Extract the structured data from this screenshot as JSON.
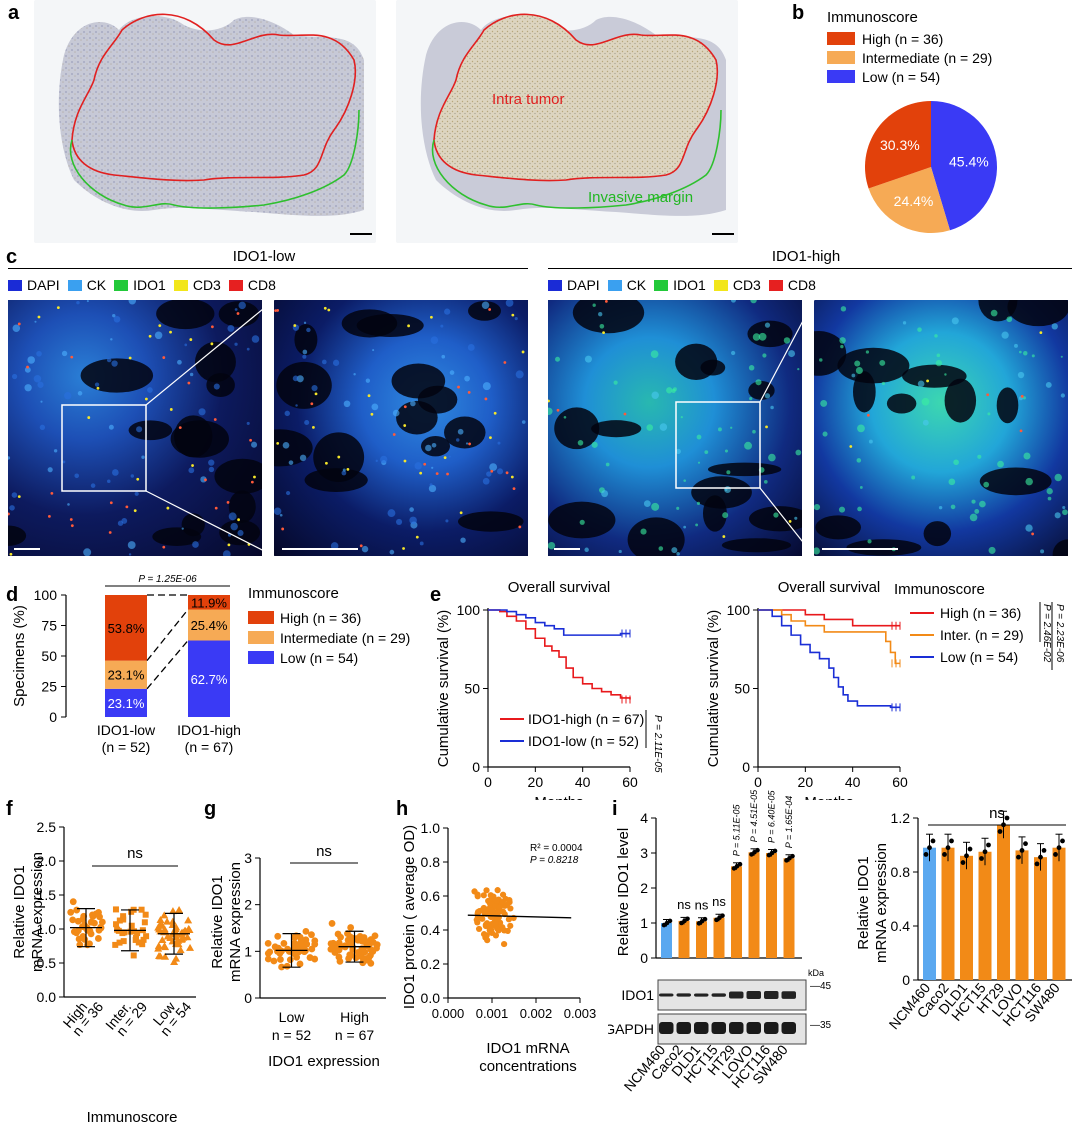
{
  "panels": {
    "a": "a",
    "b": "b",
    "c": "c",
    "d": "d",
    "e": "e",
    "f": "f",
    "g": "g",
    "h": "h",
    "i": "i"
  },
  "panel_a": {
    "label_intra": "Intra tumor",
    "label_margin": "Invasive margin"
  },
  "panel_c": {
    "left_title": "IDO1-low",
    "right_title": "IDO1-high",
    "legend": [
      {
        "label": "DAPI",
        "color": "#1a2bd6"
      },
      {
        "label": "CK",
        "color": "#3aa0f0"
      },
      {
        "label": "IDO1",
        "color": "#22c93a"
      },
      {
        "label": "CD3",
        "color": "#f2e61a"
      },
      {
        "label": "CD8",
        "color": "#e62020"
      }
    ]
  },
  "colors": {
    "high": "#e2410b",
    "intermediate": "#f6aa55",
    "low": "#3a3af5",
    "red": "#e8191c",
    "blue": "#1a2ed6",
    "orange": "#f28a17",
    "lightblue": "#5aa8f0"
  },
  "chart_data": [
    {
      "id": "b",
      "type": "pie",
      "title": "Immunoscore",
      "categories": [
        "High (n = 36)",
        "Intermediate (n = 29)",
        "Low (n = 54)"
      ],
      "values": [
        30.3,
        24.4,
        45.4
      ],
      "labels": [
        "30.3%",
        "24.4%",
        "45.4%"
      ]
    },
    {
      "id": "d",
      "type": "bar",
      "stacked": true,
      "ylabel": "Specimens (%)",
      "ylim": [
        0,
        100
      ],
      "yticks": [
        "0",
        "25",
        "50",
        "75",
        "100"
      ],
      "categories": [
        "IDO1-low\n(n = 52)",
        "IDO1-high\n(n = 67)"
      ],
      "cat_line1": [
        "IDO1-low",
        "IDO1-high"
      ],
      "cat_line2": [
        "(n = 52)",
        "(n = 67)"
      ],
      "series": [
        {
          "name": "Low (n = 54)",
          "values": [
            23.1,
            62.7
          ],
          "labels": [
            "23.1%",
            "62.7%"
          ]
        },
        {
          "name": "Intermediate (n = 29)",
          "values": [
            23.1,
            25.4
          ],
          "labels": [
            "23.1%",
            "25.4%"
          ]
        },
        {
          "name": "High (n = 36)",
          "values": [
            53.8,
            11.9
          ],
          "labels": [
            "53.8%",
            "11.9%"
          ]
        }
      ],
      "legend_title": "Immunoscore",
      "p_label": "P = 1.25E-06"
    },
    {
      "id": "e1",
      "type": "line",
      "title": "Overall survival",
      "xlabel": "Months",
      "ylabel": "Cumulative survival (%)",
      "xlim": [
        0,
        60
      ],
      "ylim": [
        0,
        100
      ],
      "xticks": [
        "0",
        "20",
        "40",
        "60"
      ],
      "yticks": [
        "0",
        "50",
        "100"
      ],
      "series": [
        {
          "name": "IDO1-high (n = 67)",
          "x": [
            0,
            5,
            8,
            12,
            16,
            20,
            24,
            27,
            30,
            33,
            36,
            40,
            44,
            48,
            52,
            56,
            60
          ],
          "y": [
            100,
            99,
            96,
            93,
            88,
            82,
            77,
            74,
            70,
            63,
            57,
            53,
            50,
            48,
            46,
            44,
            43
          ]
        },
        {
          "name": "IDO1-low (n = 52)",
          "x": [
            0,
            8,
            12,
            16,
            20,
            24,
            28,
            32,
            40,
            50,
            56,
            60
          ],
          "y": [
            100,
            99,
            97,
            95,
            92,
            90,
            88,
            84,
            84,
            84,
            85,
            85
          ]
        }
      ],
      "p_label": "P = 2.11E-05"
    },
    {
      "id": "e2",
      "type": "line",
      "title": "Overall survival",
      "xlabel": "Months",
      "ylabel": "Cumulative survival (%)",
      "xlim": [
        0,
        60
      ],
      "ylim": [
        0,
        100
      ],
      "xticks": [
        "0",
        "20",
        "40",
        "60"
      ],
      "yticks": [
        "0",
        "50",
        "100"
      ],
      "legend_title": "Immunoscore",
      "series": [
        {
          "name": "High (n = 36)",
          "x": [
            0,
            14,
            20,
            28,
            40,
            60
          ],
          "y": [
            100,
            100,
            97,
            94,
            90,
            90
          ]
        },
        {
          "name": "Inter. (n = 29)",
          "x": [
            0,
            10,
            14,
            20,
            28,
            40,
            50,
            54,
            56,
            58,
            60
          ],
          "y": [
            100,
            97,
            93,
            90,
            86,
            86,
            86,
            80,
            73,
            66,
            66
          ]
        },
        {
          "name": "Low (n = 54)",
          "x": [
            0,
            6,
            10,
            14,
            18,
            22,
            26,
            30,
            32,
            34,
            36,
            38,
            42,
            50,
            56,
            60
          ],
          "y": [
            100,
            96,
            90,
            84,
            78,
            73,
            69,
            63,
            57,
            51,
            46,
            42,
            39,
            39,
            38,
            38
          ]
        }
      ],
      "p_labels": [
        "P = 2.23E-06",
        "P = 2.46E-02"
      ]
    },
    {
      "id": "f",
      "type": "scatter",
      "xlabel": "Immunoscore",
      "ylabel": "Relative IDO1 mRNA expression",
      "ylim": [
        0,
        2.5
      ],
      "yticks": [
        "0.0",
        "0.5",
        "1.0",
        "1.5",
        "2.0",
        "2.5"
      ],
      "cat_line1": [
        "High",
        "Inter.",
        "Low"
      ],
      "cat_line2": [
        "n = 36",
        "n = 29",
        "n = 54"
      ],
      "means": [
        1.02,
        0.98,
        0.93
      ],
      "sd": [
        0.28,
        0.3,
        0.3
      ],
      "sig": "ns"
    },
    {
      "id": "g",
      "type": "scatter",
      "xlabel": "IDO1 expression",
      "ylabel": "Relative IDO1 mRNA expression",
      "ylim": [
        0,
        3
      ],
      "yticks": [
        "0",
        "1",
        "2",
        "3"
      ],
      "cat_line1": [
        "Low",
        "High"
      ],
      "cat_line2": [
        "n = 52",
        "n = 67"
      ],
      "means": [
        1.02,
        1.1
      ],
      "sd": [
        0.36,
        0.33
      ],
      "sig": "ns"
    },
    {
      "id": "h",
      "type": "scatter",
      "xlabel": "IDO1 mRNA concentrations",
      "ylabel": "IDO1 protein ( average OD)",
      "xlim": [
        0,
        0.003
      ],
      "ylim": [
        0,
        1.0
      ],
      "xticks": [
        "0.000",
        "0.001",
        "0.002",
        "0.003"
      ],
      "yticks": [
        "0.0",
        "0.2",
        "0.4",
        "0.6",
        "0.8",
        "1.0"
      ],
      "annotation": [
        "R² = 0.0004",
        "P = 0.8218"
      ],
      "fit": {
        "intercept": 0.49,
        "slope": -6.5
      }
    },
    {
      "id": "i1",
      "type": "bar",
      "ylabel": "Relative IDO1 level",
      "ylim": [
        0,
        4
      ],
      "yticks": [
        "0",
        "1",
        "2",
        "3",
        "4"
      ],
      "categories": [
        "NCM460",
        "Caco2",
        "DLD1",
        "HCT15",
        "HT29",
        "LOVO",
        "HCT116",
        "SW480"
      ],
      "values": [
        1.0,
        1.06,
        1.05,
        1.15,
        2.62,
        3.02,
        3.0,
        2.85
      ],
      "annotations": [
        "",
        "ns",
        "ns",
        "ns",
        "P = 5.11E-05",
        "P = 4.51E-05",
        "P = 6.40E-05",
        "P = 1.65E-04"
      ],
      "blot_labels": [
        "IDO1",
        "GAPDH"
      ],
      "kda_title": "kDa",
      "kda": [
        "45",
        "35"
      ]
    },
    {
      "id": "i2",
      "type": "bar",
      "ylabel": "Relative IDO1 mRNA expression",
      "ylim": [
        0,
        1.2
      ],
      "yticks": [
        "0",
        "0.4",
        "0.8",
        "1.2"
      ],
      "categories": [
        "NCM460",
        "Caco2",
        "DLD1",
        "HCT15",
        "HT29",
        "LOVO",
        "HCT116",
        "SW480"
      ],
      "values": [
        0.98,
        0.98,
        0.92,
        0.95,
        1.15,
        0.96,
        0.91,
        0.98
      ],
      "sig": "ns"
    }
  ]
}
